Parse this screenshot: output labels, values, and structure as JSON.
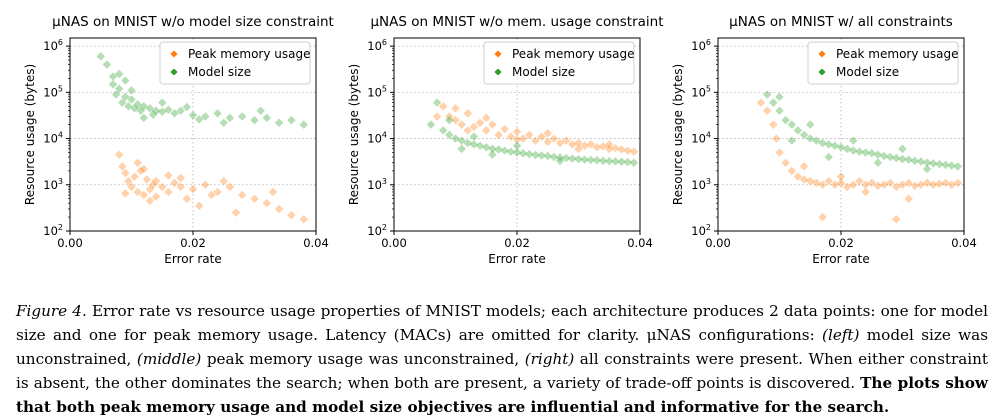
{
  "figure": {
    "legend_labels": [
      "Peak memory usage",
      "Model size"
    ],
    "colors": {
      "peak_memory": "#ff7f0e",
      "model_size": "#2ca02c",
      "grid": "#b0b0b0"
    },
    "xlabel": "Error rate",
    "ylabel": "Resource usage (bytes)",
    "x_ticks": [
      "0.00",
      "0.02",
      "0.04"
    ],
    "y_tick_exponents": [
      "2",
      "3",
      "4",
      "5",
      "6"
    ]
  },
  "chart_data": [
    {
      "type": "scatter",
      "title": "μNAS on MNIST w/o model size constraint",
      "xlabel": "Error rate",
      "ylabel": "Resource usage (bytes)",
      "xlim": [
        0.0,
        0.04
      ],
      "ylim": [
        100,
        1500000
      ],
      "yscale": "log",
      "grid": true,
      "legend": "top-right",
      "series": [
        {
          "name": "Peak memory usage",
          "points": [
            [
              0.008,
              4500
            ],
            [
              0.0085,
              2500
            ],
            [
              0.009,
              1800
            ],
            [
              0.0095,
              1200
            ],
            [
              0.01,
              900
            ],
            [
              0.0105,
              1500
            ],
            [
              0.011,
              700
            ],
            [
              0.0115,
              2000
            ],
            [
              0.012,
              600
            ],
            [
              0.0125,
              1300
            ],
            [
              0.013,
              800
            ],
            [
              0.0135,
              1000
            ],
            [
              0.014,
              1200
            ],
            [
              0.015,
              900
            ],
            [
              0.016,
              700
            ],
            [
              0.017,
              1100
            ],
            [
              0.018,
              900
            ],
            [
              0.02,
              800
            ],
            [
              0.022,
              1000
            ],
            [
              0.024,
              700
            ],
            [
              0.026,
              900
            ],
            [
              0.028,
              600
            ],
            [
              0.03,
              500
            ],
            [
              0.032,
              400
            ],
            [
              0.034,
              300
            ],
            [
              0.036,
              220
            ],
            [
              0.038,
              180
            ],
            [
              0.011,
              3000
            ],
            [
              0.013,
              450
            ],
            [
              0.019,
              500
            ],
            [
              0.025,
              1200
            ],
            [
              0.033,
              700
            ],
            [
              0.009,
              650
            ],
            [
              0.016,
              1600
            ],
            [
              0.021,
              350
            ],
            [
              0.027,
              250
            ],
            [
              0.014,
              550
            ],
            [
              0.012,
              2200
            ],
            [
              0.018,
              1400
            ],
            [
              0.023,
              600
            ]
          ]
        },
        {
          "name": "Model size",
          "points": [
            [
              0.006,
              400000
            ],
            [
              0.007,
              150000
            ],
            [
              0.0075,
              90000
            ],
            [
              0.008,
              120000
            ],
            [
              0.0085,
              60000
            ],
            [
              0.009,
              80000
            ],
            [
              0.0095,
              50000
            ],
            [
              0.01,
              70000
            ],
            [
              0.0105,
              45000
            ],
            [
              0.011,
              55000
            ],
            [
              0.0115,
              40000
            ],
            [
              0.012,
              50000
            ],
            [
              0.013,
              45000
            ],
            [
              0.014,
              40000
            ],
            [
              0.015,
              38000
            ],
            [
              0.016,
              42000
            ],
            [
              0.017,
              35000
            ],
            [
              0.018,
              40000
            ],
            [
              0.02,
              32000
            ],
            [
              0.022,
              30000
            ],
            [
              0.024,
              35000
            ],
            [
              0.026,
              28000
            ],
            [
              0.028,
              30000
            ],
            [
              0.03,
              25000
            ],
            [
              0.032,
              28000
            ],
            [
              0.034,
              22000
            ],
            [
              0.036,
              25000
            ],
            [
              0.038,
              20000
            ],
            [
              0.008,
              250000
            ],
            [
              0.01,
              110000
            ],
            [
              0.012,
              28000
            ],
            [
              0.015,
              60000
            ],
            [
              0.019,
              48000
            ],
            [
              0.025,
              22000
            ],
            [
              0.031,
              40000
            ],
            [
              0.005,
              600000
            ],
            [
              0.007,
              220000
            ],
            [
              0.009,
              180000
            ],
            [
              0.0135,
              33000
            ],
            [
              0.021,
              26000
            ]
          ]
        }
      ]
    },
    {
      "type": "scatter",
      "title": "μNAS on MNIST w/o mem. usage constraint",
      "xlabel": "Error rate",
      "ylabel": "Resource usage (bytes)",
      "xlim": [
        0.0,
        0.04
      ],
      "ylim": [
        100,
        1500000
      ],
      "yscale": "log",
      "grid": true,
      "legend": "top-right",
      "series": [
        {
          "name": "Peak memory usage",
          "points": [
            [
              0.008,
              50000
            ],
            [
              0.009,
              30000
            ],
            [
              0.01,
              25000
            ],
            [
              0.011,
              20000
            ],
            [
              0.012,
              35000
            ],
            [
              0.013,
              18000
            ],
            [
              0.014,
              22000
            ],
            [
              0.015,
              15000
            ],
            [
              0.016,
              20000
            ],
            [
              0.017,
              12000
            ],
            [
              0.018,
              16000
            ],
            [
              0.019,
              11000
            ],
            [
              0.02,
              14000
            ],
            [
              0.021,
              10000
            ],
            [
              0.022,
              12000
            ],
            [
              0.023,
              9000
            ],
            [
              0.024,
              11000
            ],
            [
              0.025,
              8500
            ],
            [
              0.026,
              10000
            ],
            [
              0.027,
              8000
            ],
            [
              0.028,
              9000
            ],
            [
              0.029,
              7500
            ],
            [
              0.03,
              8000
            ],
            [
              0.031,
              7000
            ],
            [
              0.032,
              7500
            ],
            [
              0.033,
              6500
            ],
            [
              0.034,
              6800
            ],
            [
              0.035,
              6000
            ],
            [
              0.036,
              6200
            ],
            [
              0.037,
              5800
            ],
            [
              0.038,
              5500
            ],
            [
              0.039,
              5200
            ],
            [
              0.007,
              30000
            ],
            [
              0.01,
              45000
            ],
            [
              0.012,
              15000
            ],
            [
              0.015,
              28000
            ],
            [
              0.02,
              9500
            ],
            [
              0.025,
              13000
            ],
            [
              0.03,
              6000
            ],
            [
              0.035,
              7500
            ]
          ]
        },
        {
          "name": "Model size",
          "points": [
            [
              0.006,
              20000
            ],
            [
              0.007,
              60000
            ],
            [
              0.008,
              15000
            ],
            [
              0.009,
              12000
            ],
            [
              0.01,
              10000
            ],
            [
              0.011,
              9000
            ],
            [
              0.012,
              8000
            ],
            [
              0.013,
              7500
            ],
            [
              0.014,
              7000
            ],
            [
              0.015,
              6500
            ],
            [
              0.016,
              6000
            ],
            [
              0.017,
              5800
            ],
            [
              0.018,
              5500
            ],
            [
              0.019,
              5200
            ],
            [
              0.02,
              5000
            ],
            [
              0.021,
              4800
            ],
            [
              0.022,
              4600
            ],
            [
              0.023,
              4400
            ],
            [
              0.024,
              4300
            ],
            [
              0.025,
              4200
            ],
            [
              0.026,
              4000
            ],
            [
              0.027,
              3900
            ],
            [
              0.028,
              3800
            ],
            [
              0.029,
              3700
            ],
            [
              0.03,
              3600
            ],
            [
              0.031,
              3500
            ],
            [
              0.032,
              3450
            ],
            [
              0.033,
              3400
            ],
            [
              0.034,
              3300
            ],
            [
              0.035,
              3250
            ],
            [
              0.036,
              3200
            ],
            [
              0.037,
              3150
            ],
            [
              0.038,
              3100
            ],
            [
              0.039,
              3000
            ],
            [
              0.009,
              25000
            ],
            [
              0.011,
              6000
            ],
            [
              0.013,
              11000
            ],
            [
              0.016,
              4500
            ],
            [
              0.02,
              7000
            ],
            [
              0.027,
              3300
            ]
          ]
        }
      ]
    },
    {
      "type": "scatter",
      "title": "μNAS on MNIST w/ all constraints",
      "xlabel": "Error rate",
      "ylabel": "Resource usage (bytes)",
      "xlim": [
        0.0,
        0.04
      ],
      "ylim": [
        100,
        1500000
      ],
      "yscale": "log",
      "grid": true,
      "legend": "top-right",
      "series": [
        {
          "name": "Peak memory usage",
          "points": [
            [
              0.007,
              60000
            ],
            [
              0.008,
              40000
            ],
            [
              0.009,
              20000
            ],
            [
              0.0095,
              10000
            ],
            [
              0.01,
              5000
            ],
            [
              0.011,
              3000
            ],
            [
              0.012,
              2000
            ],
            [
              0.013,
              1500
            ],
            [
              0.014,
              1300
            ],
            [
              0.015,
              1200
            ],
            [
              0.016,
              1100
            ],
            [
              0.017,
              1000
            ],
            [
              0.018,
              1200
            ],
            [
              0.019,
              1000
            ],
            [
              0.02,
              1100
            ],
            [
              0.021,
              900
            ],
            [
              0.022,
              1000
            ],
            [
              0.023,
              1200
            ],
            [
              0.024,
              1000
            ],
            [
              0.025,
              1100
            ],
            [
              0.026,
              950
            ],
            [
              0.027,
              1000
            ],
            [
              0.028,
              1100
            ],
            [
              0.029,
              900
            ],
            [
              0.03,
              1000
            ],
            [
              0.031,
              1100
            ],
            [
              0.032,
              950
            ],
            [
              0.033,
              1000
            ],
            [
              0.034,
              1100
            ],
            [
              0.035,
              1000
            ],
            [
              0.036,
              1050
            ],
            [
              0.037,
              1100
            ],
            [
              0.038,
              1000
            ],
            [
              0.039,
              1100
            ],
            [
              0.017,
              200
            ],
            [
              0.029,
              180
            ],
            [
              0.014,
              2500
            ],
            [
              0.024,
              700
            ],
            [
              0.031,
              500
            ],
            [
              0.02,
              1500
            ]
          ]
        },
        {
          "name": "Model size",
          "points": [
            [
              0.008,
              90000
            ],
            [
              0.009,
              60000
            ],
            [
              0.01,
              40000
            ],
            [
              0.011,
              25000
            ],
            [
              0.012,
              20000
            ],
            [
              0.013,
              15000
            ],
            [
              0.014,
              12000
            ],
            [
              0.015,
              10000
            ],
            [
              0.016,
              9000
            ],
            [
              0.017,
              8000
            ],
            [
              0.018,
              7500
            ],
            [
              0.019,
              7000
            ],
            [
              0.02,
              6500
            ],
            [
              0.021,
              6000
            ],
            [
              0.022,
              5500
            ],
            [
              0.023,
              5200
            ],
            [
              0.024,
              5000
            ],
            [
              0.025,
              4800
            ],
            [
              0.026,
              4500
            ],
            [
              0.027,
              4200
            ],
            [
              0.028,
              4000
            ],
            [
              0.029,
              3800
            ],
            [
              0.03,
              3600
            ],
            [
              0.031,
              3500
            ],
            [
              0.032,
              3300
            ],
            [
              0.033,
              3200
            ],
            [
              0.034,
              3000
            ],
            [
              0.035,
              2900
            ],
            [
              0.036,
              2800
            ],
            [
              0.037,
              2700
            ],
            [
              0.038,
              2600
            ],
            [
              0.039,
              2500
            ],
            [
              0.01,
              80000
            ],
            [
              0.012,
              9000
            ],
            [
              0.015,
              20000
            ],
            [
              0.018,
              4000
            ],
            [
              0.022,
              9000
            ],
            [
              0.026,
              3000
            ],
            [
              0.03,
              6000
            ],
            [
              0.034,
              2200
            ]
          ]
        }
      ]
    }
  ],
  "caption": {
    "label": "Figure 4.",
    "text_1": "Error rate vs resource usage properties of MNIST models; each architecture produces 2 data points: one for model size and one for peak memory usage. Latency (MACs) are omitted for clarity. μNAS configurations:",
    "left": "(left)",
    "text_2": "model size was unconstrained,",
    "middle": "(middle)",
    "text_3": "peak memory usage was unconstrained,",
    "right": "(right)",
    "text_4": "all constraints were present. When either constraint is absent, the other dominates the search; when both are present, a variety of trade-off points is discovered.",
    "bold": "The plots show that both peak memory usage and model size objectives are influential and informative for the search."
  }
}
